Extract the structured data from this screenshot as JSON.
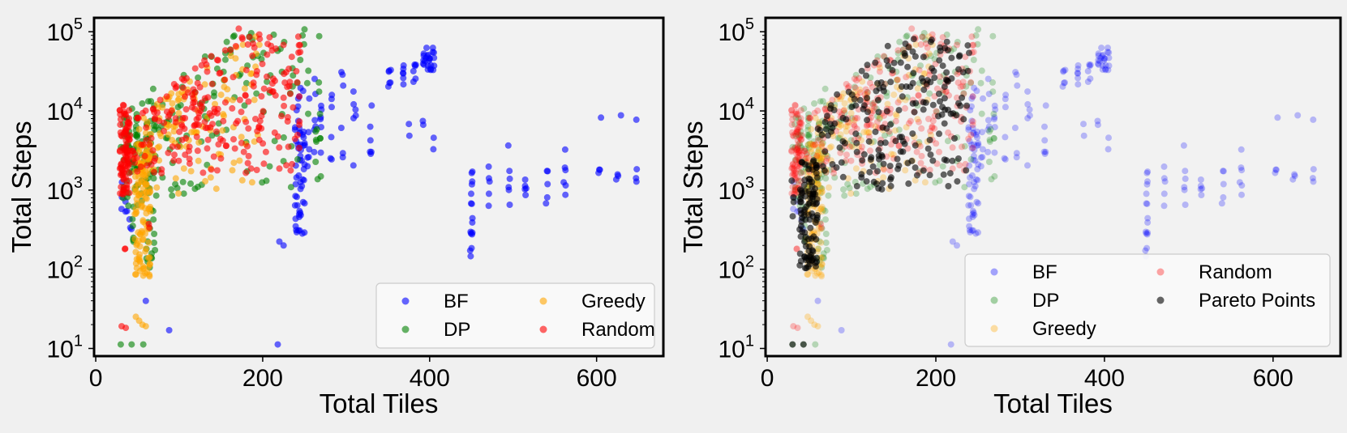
{
  "chart_data": [
    {
      "type": "scatter",
      "panel": "left",
      "xlabel": "Total Tiles",
      "ylabel": "Total Steps",
      "yscale": "log",
      "xlim": [
        -2,
        680
      ],
      "ylim": [
        8,
        150000
      ],
      "x_ticks": [
        0,
        200,
        400,
        600
      ],
      "y_ticks": [
        {
          "value": 10,
          "base": "10",
          "exp": "1"
        },
        {
          "value": 100,
          "base": "10",
          "exp": "2"
        },
        {
          "value": 1000,
          "base": "10",
          "exp": "3"
        },
        {
          "value": 10000,
          "base": "10",
          "exp": "4"
        },
        {
          "value": 100000,
          "base": "10",
          "exp": "5"
        }
      ],
      "legend_position": "lower-right",
      "legend_columns": 2,
      "legend": [
        {
          "label": "BF",
          "series": "BF"
        },
        {
          "label": "Greedy",
          "series": "Greedy"
        },
        {
          "label": "DP",
          "series": "DP"
        },
        {
          "label": "Random",
          "series": "Random"
        }
      ],
      "series": [
        {
          "name": "BF",
          "color": "#0000ff",
          "alpha": 0.6,
          "seed": 11
        },
        {
          "name": "DP",
          "color": "#008000",
          "alpha": 0.6,
          "seed": 23
        },
        {
          "name": "Greedy",
          "color": "#ffa500",
          "alpha": 0.6,
          "seed": 37
        },
        {
          "name": "Random",
          "color": "#ff0000",
          "alpha": 0.6,
          "seed": 51
        }
      ]
    },
    {
      "type": "scatter",
      "panel": "right",
      "xlabel": "Total Tiles",
      "ylabel": "Total Steps",
      "yscale": "log",
      "xlim": [
        -2,
        680
      ],
      "ylim": [
        8,
        150000
      ],
      "x_ticks": [
        0,
        200,
        400,
        600
      ],
      "y_ticks": [
        {
          "value": 10,
          "base": "10",
          "exp": "1"
        },
        {
          "value": 100,
          "base": "10",
          "exp": "2"
        },
        {
          "value": 1000,
          "base": "10",
          "exp": "3"
        },
        {
          "value": 10000,
          "base": "10",
          "exp": "4"
        },
        {
          "value": 100000,
          "base": "10",
          "exp": "5"
        }
      ],
      "legend_position": "lower-right",
      "legend_columns": 2,
      "legend": [
        {
          "label": "BF",
          "series": "BF"
        },
        {
          "label": "Random",
          "series": "Random"
        },
        {
          "label": "DP",
          "series": "DP"
        },
        {
          "label": "Pareto Points",
          "series": "Pareto Points"
        },
        {
          "label": "Greedy",
          "series": "Greedy"
        }
      ],
      "series": [
        {
          "name": "BF",
          "color": "#0000ff",
          "alpha": 0.25,
          "seed": 11
        },
        {
          "name": "DP",
          "color": "#008000",
          "alpha": 0.25,
          "seed": 23
        },
        {
          "name": "Greedy",
          "color": "#ffa500",
          "alpha": 0.3,
          "seed": 37
        },
        {
          "name": "Random",
          "color": "#ff0000",
          "alpha": 0.25,
          "seed": 51
        },
        {
          "name": "Pareto Points",
          "color": "#000000",
          "alpha": 0.6,
          "seed": 71
        }
      ]
    }
  ]
}
